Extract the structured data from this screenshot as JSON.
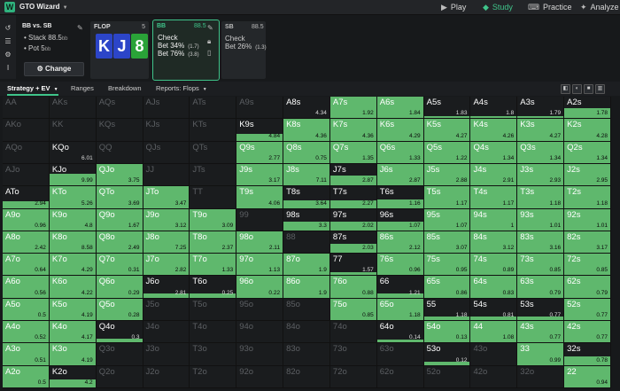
{
  "app": {
    "title": "GTO Wizard",
    "logo_letter": "W"
  },
  "nav": [
    {
      "label": "Play",
      "icon": "play-icon",
      "glyph": "▶"
    },
    {
      "label": "Study",
      "icon": "study-icon",
      "glyph": "◆"
    },
    {
      "label": "Practice",
      "icon": "gamepad-icon",
      "glyph": "⌨"
    },
    {
      "label": "Analyze",
      "icon": "analyze-icon",
      "glyph": "✦"
    }
  ],
  "colors": {
    "accent": "#3fc48a",
    "cell_fill": "#5fb86d",
    "card_blue": "#2c45c8",
    "card_green": "#2aa338"
  },
  "spot": {
    "title": "BB vs. SB",
    "stack_label": "Stack 88.5",
    "stack_unit": "bb",
    "pot_label": "Pot 5",
    "pot_unit": "bb",
    "change_label": "Change"
  },
  "flop": {
    "label": "FLOP",
    "count": "5",
    "cards": [
      "K",
      "J",
      "8"
    ]
  },
  "nodes": {
    "bb": {
      "player": "BB",
      "stack": "88.5",
      "actions": [
        {
          "label": "Check",
          "size": ""
        },
        {
          "label": "Bet 34%",
          "size": "(1.7)"
        },
        {
          "label": "Bet 76%",
          "size": "(3.8)"
        }
      ]
    },
    "sb": {
      "player": "SB",
      "stack": "88.5",
      "actions": [
        {
          "label": "Check",
          "size": ""
        },
        {
          "label": "Bet 26%",
          "size": "(1.3)"
        }
      ]
    }
  },
  "tabs": [
    "Strategy + EV",
    "Ranges",
    "Breakdown",
    "Reports: Flops"
  ],
  "matrix": {
    "rows": [
      [
        [
          "AA",
          "",
          0,
          1
        ],
        [
          "AKs",
          "",
          0,
          1
        ],
        [
          "AQs",
          "",
          0,
          1
        ],
        [
          "AJs",
          "",
          0,
          1
        ],
        [
          "ATs",
          "",
          0,
          1
        ],
        [
          "A9s",
          "",
          0,
          1
        ],
        [
          "A8s",
          "4.34",
          0,
          0
        ],
        [
          "A7s",
          "1.92",
          1,
          0
        ],
        [
          "A6s",
          "1.84",
          1,
          0
        ],
        [
          "A5s",
          "1.83",
          0.1,
          0
        ],
        [
          "A4s",
          "1.8",
          0.1,
          0
        ],
        [
          "A3s",
          "1.79",
          0.1,
          0
        ],
        [
          "A2s",
          "1.78",
          0.45,
          0
        ]
      ],
      [
        [
          "AKo",
          "",
          0,
          1
        ],
        [
          "KK",
          "",
          0,
          1
        ],
        [
          "KQs",
          "",
          0,
          1
        ],
        [
          "KJs",
          "",
          0,
          1
        ],
        [
          "KTs",
          "",
          0,
          1
        ],
        [
          "K9s",
          "4.84",
          0.3,
          0
        ],
        [
          "K8s",
          "4.36",
          1,
          0
        ],
        [
          "K7s",
          "4.36",
          1,
          0
        ],
        [
          "K6s",
          "4.29",
          1,
          0
        ],
        [
          "K5s",
          "4.27",
          1,
          0
        ],
        [
          "K4s",
          "4.26",
          1,
          0
        ],
        [
          "K3s",
          "4.27",
          1,
          0
        ],
        [
          "K2s",
          "4.28",
          1,
          0
        ]
      ],
      [
        [
          "AQo",
          "",
          0,
          1
        ],
        [
          "KQo",
          "6.01",
          0,
          0
        ],
        [
          "QQ",
          "",
          0,
          1
        ],
        [
          "QJs",
          "",
          0,
          1
        ],
        [
          "QTs",
          "",
          0,
          1
        ],
        [
          "Q9s",
          "2.77",
          1,
          0
        ],
        [
          "Q8s",
          "0.75",
          1,
          0
        ],
        [
          "Q7s",
          "1.35",
          1,
          0
        ],
        [
          "Q6s",
          "1.33",
          1,
          0
        ],
        [
          "Q5s",
          "1.22",
          1,
          0
        ],
        [
          "Q4s",
          "1.34",
          1,
          0
        ],
        [
          "Q3s",
          "1.34",
          1,
          0
        ],
        [
          "Q2s",
          "1.34",
          1,
          0
        ]
      ],
      [
        [
          "AJo",
          "",
          0,
          1
        ],
        [
          "KJo",
          "9.99",
          0.55,
          0
        ],
        [
          "QJo",
          "3.75",
          1,
          0
        ],
        [
          "JJ",
          "",
          0,
          1
        ],
        [
          "JTs",
          "",
          0,
          1
        ],
        [
          "J9s",
          "3.17",
          1,
          0
        ],
        [
          "J8s",
          "7.11",
          1,
          0
        ],
        [
          "J7s",
          "2.87",
          0.45,
          0
        ],
        [
          "J6s",
          "2.87",
          1,
          0
        ],
        [
          "J5s",
          "2.88",
          1,
          0
        ],
        [
          "J4s",
          "2.91",
          1,
          0
        ],
        [
          "J3s",
          "2.93",
          1,
          0
        ],
        [
          "J2s",
          "2.95",
          1,
          0
        ]
      ],
      [
        [
          "ATo",
          "2.94",
          0.3,
          0
        ],
        [
          "KTo",
          "5.26",
          1,
          0
        ],
        [
          "QTo",
          "3.69",
          1,
          0
        ],
        [
          "JTo",
          "3.47",
          1,
          0
        ],
        [
          "TT",
          "",
          0,
          1
        ],
        [
          "T9s",
          "4.06",
          1,
          0
        ],
        [
          "T8s",
          "3.64",
          0.35,
          0
        ],
        [
          "T7s",
          "2.27",
          0.35,
          0
        ],
        [
          "T6s",
          "1.16",
          0.4,
          0
        ],
        [
          "T5s",
          "1.17",
          1,
          0
        ],
        [
          "T4s",
          "1.17",
          1,
          0
        ],
        [
          "T3s",
          "1.18",
          1,
          0
        ],
        [
          "T2s",
          "1.18",
          1,
          0
        ]
      ],
      [
        [
          "A9o",
          "0.96",
          1,
          0
        ],
        [
          "K9o",
          "4.8",
          1,
          0
        ],
        [
          "Q9o",
          "1.67",
          1,
          0
        ],
        [
          "J9o",
          "3.12",
          1,
          0
        ],
        [
          "T9o",
          "3.09",
          1,
          0
        ],
        [
          "99",
          "",
          0,
          1
        ],
        [
          "98s",
          "3.3",
          0.4,
          0
        ],
        [
          "97s",
          "2.02",
          0.4,
          0
        ],
        [
          "96s",
          "1.07",
          0.4,
          0
        ],
        [
          "95s",
          "1.07",
          1,
          0
        ],
        [
          "94s",
          "1",
          1,
          0
        ],
        [
          "93s",
          "1.01",
          1,
          0
        ],
        [
          "92s",
          "1.01",
          1,
          0
        ]
      ],
      [
        [
          "A8o",
          "2.42",
          1,
          0
        ],
        [
          "K8o",
          "8.58",
          1,
          0
        ],
        [
          "Q8o",
          "2.49",
          1,
          0
        ],
        [
          "J8o",
          "7.25",
          1,
          0
        ],
        [
          "T8o",
          "2.37",
          1,
          0
        ],
        [
          "98o",
          "2.11",
          1,
          0
        ],
        [
          "88",
          "",
          0,
          1
        ],
        [
          "87s",
          "2.03",
          0.4,
          0
        ],
        [
          "86s",
          "2.12",
          1,
          0
        ],
        [
          "85s",
          "3.07",
          1,
          0
        ],
        [
          "84s",
          "3.12",
          1,
          0
        ],
        [
          "83s",
          "3.16",
          1,
          0
        ],
        [
          "82s",
          "3.17",
          1,
          0
        ]
      ],
      [
        [
          "A7o",
          "0.64",
          1,
          0
        ],
        [
          "K7o",
          "4.29",
          1,
          0
        ],
        [
          "Q7o",
          "0.31",
          1,
          0
        ],
        [
          "J7o",
          "2.82",
          1,
          0
        ],
        [
          "T7o",
          "1.33",
          1,
          0
        ],
        [
          "97o",
          "1.13",
          1,
          0
        ],
        [
          "87o",
          "1.9",
          1,
          0
        ],
        [
          "77",
          "1.57",
          0.15,
          0
        ],
        [
          "76s",
          "0.96",
          1,
          0
        ],
        [
          "75s",
          "0.95",
          1,
          0
        ],
        [
          "74s",
          "0.89",
          1,
          0
        ],
        [
          "73s",
          "0.85",
          1,
          0
        ],
        [
          "72s",
          "0.85",
          1,
          0
        ]
      ],
      [
        [
          "A6o",
          "0.56",
          1,
          0
        ],
        [
          "K6o",
          "4.22",
          1,
          0
        ],
        [
          "Q6o",
          "0.29",
          1,
          0
        ],
        [
          "J6o",
          "2.81",
          0.2,
          0
        ],
        [
          "T6o",
          "0.25",
          0.2,
          0
        ],
        [
          "96o",
          "0.22",
          1,
          0
        ],
        [
          "86o",
          "1.9",
          1,
          0
        ],
        [
          "76o",
          "0.88",
          1,
          0
        ],
        [
          "66",
          "1.21",
          0.2,
          0
        ],
        [
          "65s",
          "0.86",
          1,
          0
        ],
        [
          "64s",
          "0.83",
          1,
          0
        ],
        [
          "63s",
          "0.79",
          1,
          0
        ],
        [
          "62s",
          "0.79",
          1,
          0
        ]
      ],
      [
        [
          "A5o",
          "0.5",
          1,
          0
        ],
        [
          "K5o",
          "4.19",
          1,
          0
        ],
        [
          "Q5o",
          "0.28",
          1,
          0
        ],
        [
          "J5o",
          "",
          0,
          1
        ],
        [
          "T5o",
          "",
          0,
          1
        ],
        [
          "95o",
          "",
          0,
          1
        ],
        [
          "85o",
          "",
          0,
          1
        ],
        [
          "75o",
          "0.85",
          1,
          0
        ],
        [
          "65o",
          "1.18",
          1,
          0
        ],
        [
          "55",
          "1.18",
          0.15,
          0
        ],
        [
          "54s",
          "0.81",
          0.15,
          0
        ],
        [
          "53s",
          "0.77",
          0.15,
          0
        ],
        [
          "52s",
          "0.77",
          1,
          0
        ]
      ],
      [
        [
          "A4o",
          "0.52",
          1,
          0
        ],
        [
          "K4o",
          "4.17",
          1,
          0
        ],
        [
          "Q4o",
          "0.3",
          0.2,
          0
        ],
        [
          "J4o",
          "",
          0,
          1
        ],
        [
          "T4o",
          "",
          0,
          1
        ],
        [
          "94o",
          "",
          0,
          1
        ],
        [
          "84o",
          "",
          0,
          1
        ],
        [
          "74o",
          "",
          0,
          1
        ],
        [
          "64o",
          "0.14",
          0.15,
          0
        ],
        [
          "54o",
          "0.13",
          1,
          0
        ],
        [
          "44",
          "1.08",
          1,
          0
        ],
        [
          "43s",
          "0.77",
          1,
          0
        ],
        [
          "42s",
          "0.77",
          1,
          0
        ]
      ],
      [
        [
          "A3o",
          "0.51",
          1,
          0
        ],
        [
          "K3o",
          "4.19",
          1,
          0
        ],
        [
          "Q3o",
          "",
          0,
          1
        ],
        [
          "J3o",
          "",
          0,
          1
        ],
        [
          "T3o",
          "",
          0,
          1
        ],
        [
          "93o",
          "",
          0,
          1
        ],
        [
          "83o",
          "",
          0,
          1
        ],
        [
          "73o",
          "",
          0,
          1
        ],
        [
          "63o",
          "",
          0,
          1
        ],
        [
          "53o",
          "0.12",
          0.15,
          0
        ],
        [
          "43o",
          "",
          0,
          1
        ],
        [
          "33",
          "0.99",
          1,
          0
        ],
        [
          "32s",
          "0.78",
          0.4,
          0
        ]
      ],
      [
        [
          "A2o",
          "0.5",
          1,
          0
        ],
        [
          "K2o",
          "4.2",
          0.35,
          0
        ],
        [
          "Q2o",
          "",
          0,
          1
        ],
        [
          "J2o",
          "",
          0,
          1
        ],
        [
          "T2o",
          "",
          0,
          1
        ],
        [
          "92o",
          "",
          0,
          1
        ],
        [
          "82o",
          "",
          0,
          1
        ],
        [
          "72o",
          "",
          0,
          1
        ],
        [
          "62o",
          "",
          0,
          1
        ],
        [
          "52o",
          "",
          0,
          1
        ],
        [
          "42o",
          "",
          0,
          1
        ],
        [
          "32o",
          "",
          0,
          1
        ],
        [
          "22",
          "0.94",
          1,
          0
        ]
      ]
    ]
  }
}
